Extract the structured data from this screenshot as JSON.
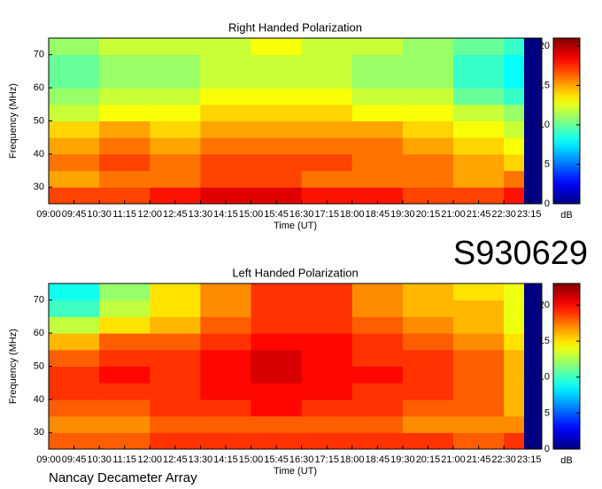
{
  "chart_data": [
    {
      "type": "heatmap",
      "title": "Right Handed Polarization",
      "x_label": "Time (UT)",
      "y_label": "Frequency (MHz)",
      "colorbar_label": "dB",
      "colormap": "jet",
      "xlim": [
        9,
        23.625
      ],
      "xticks": [
        {
          "value": 9,
          "label": "09:00"
        },
        {
          "value": 9.75,
          "label": "09:45"
        },
        {
          "value": 10.5,
          "label": "10:30"
        },
        {
          "value": 11.25,
          "label": "11:15"
        },
        {
          "value": 12,
          "label": "12:00"
        },
        {
          "value": 12.75,
          "label": "12:45"
        },
        {
          "value": 13.5,
          "label": "13:30"
        },
        {
          "value": 14.25,
          "label": "14:15"
        },
        {
          "value": 15,
          "label": "15:00"
        },
        {
          "value": 15.75,
          "label": "15:45"
        },
        {
          "value": 16.5,
          "label": "16:30"
        },
        {
          "value": 17.25,
          "label": "17:15"
        },
        {
          "value": 18,
          "label": "18:00"
        },
        {
          "value": 18.75,
          "label": "18:45"
        },
        {
          "value": 19.5,
          "label": "19:30"
        },
        {
          "value": 20.25,
          "label": "20:15"
        },
        {
          "value": 21,
          "label": "21:00"
        },
        {
          "value": 21.75,
          "label": "21:45"
        },
        {
          "value": 22.5,
          "label": "22:30"
        },
        {
          "value": 23.25,
          "label": "23:15"
        }
      ],
      "ylim": [
        25,
        75
      ],
      "yticks": [
        30,
        40,
        50,
        60,
        70
      ],
      "zlim": [
        0,
        21
      ],
      "zticks": [
        0,
        5,
        10,
        15,
        20
      ],
      "x_bins": [
        9,
        10.5,
        12,
        13.5,
        15,
        16.5,
        18,
        19.5,
        21,
        22.5,
        23.1,
        23.625
      ],
      "y_bins": [
        25,
        30,
        35,
        40,
        45,
        50,
        55,
        60,
        65,
        70,
        75
      ],
      "values": [
        [
          17,
          17,
          18,
          19,
          19,
          18,
          18,
          17,
          17,
          18,
          0
        ],
        [
          15,
          16,
          16,
          17,
          17,
          16,
          16,
          16,
          15,
          16,
          0
        ],
        [
          16,
          17,
          16,
          17,
          17,
          17,
          16,
          16,
          15,
          14,
          0
        ],
        [
          15,
          16,
          15,
          16,
          16,
          16,
          16,
          15,
          14,
          13,
          0
        ],
        [
          14,
          15,
          14,
          15,
          15,
          15,
          15,
          14,
          13,
          12,
          0
        ],
        [
          12,
          13,
          13,
          14,
          14,
          14,
          13,
          13,
          12,
          11,
          0
        ],
        [
          11,
          12,
          12,
          13,
          13,
          13,
          12,
          12,
          10,
          9,
          0
        ],
        [
          10,
          11,
          11,
          12,
          12,
          12,
          11,
          11,
          9,
          8,
          0
        ],
        [
          10,
          11,
          11,
          12,
          12,
          12,
          11,
          11,
          9,
          8,
          0
        ],
        [
          11,
          12,
          12,
          12,
          13,
          12,
          12,
          11,
          10,
          9,
          0
        ]
      ]
    },
    {
      "type": "heatmap",
      "title": "Left Handed Polarization",
      "x_label": "Time (UT)",
      "y_label": "Frequency (MHz)",
      "colorbar_label": "dB",
      "colormap": "jet",
      "xlim": [
        9,
        23.625
      ],
      "xticks": [
        {
          "value": 9,
          "label": "09:00"
        },
        {
          "value": 9.75,
          "label": "09:45"
        },
        {
          "value": 10.5,
          "label": "10:30"
        },
        {
          "value": 11.25,
          "label": "11:15"
        },
        {
          "value": 12,
          "label": "12:00"
        },
        {
          "value": 12.75,
          "label": "12:45"
        },
        {
          "value": 13.5,
          "label": "13:30"
        },
        {
          "value": 14.25,
          "label": "14:15"
        },
        {
          "value": 15,
          "label": "15:00"
        },
        {
          "value": 15.75,
          "label": "15:45"
        },
        {
          "value": 16.5,
          "label": "16:30"
        },
        {
          "value": 17.25,
          "label": "17:15"
        },
        {
          "value": 18,
          "label": "18:00"
        },
        {
          "value": 18.75,
          "label": "18:45"
        },
        {
          "value": 19.5,
          "label": "19:30"
        },
        {
          "value": 20.25,
          "label": "20:15"
        },
        {
          "value": 21,
          "label": "21:00"
        },
        {
          "value": 21.75,
          "label": "21:45"
        },
        {
          "value": 22.5,
          "label": "22:30"
        },
        {
          "value": 23.25,
          "label": "23:15"
        }
      ],
      "ylim": [
        25,
        75
      ],
      "yticks": [
        30,
        40,
        50,
        60,
        70
      ],
      "zlim": [
        0,
        23
      ],
      "zticks": [
        0,
        5,
        10,
        15,
        20
      ],
      "x_bins": [
        9,
        10.5,
        12,
        13.5,
        15,
        16.5,
        18,
        19.5,
        21,
        22.5,
        23.1,
        23.625
      ],
      "y_bins": [
        25,
        30,
        35,
        40,
        45,
        50,
        55,
        60,
        65,
        70,
        75
      ],
      "values": [
        [
          18,
          18,
          19,
          19,
          19,
          19,
          19,
          19,
          18,
          19,
          0
        ],
        [
          17,
          17,
          18,
          18,
          18,
          18,
          18,
          17,
          17,
          17,
          0
        ],
        [
          18,
          18,
          19,
          19,
          20,
          19,
          19,
          18,
          18,
          16,
          0
        ],
        [
          19,
          19,
          19,
          20,
          20,
          20,
          19,
          19,
          18,
          16,
          0
        ],
        [
          19,
          20,
          19,
          20,
          21,
          20,
          20,
          19,
          18,
          16,
          0
        ],
        [
          18,
          19,
          19,
          20,
          21,
          20,
          19,
          19,
          18,
          16,
          0
        ],
        [
          16,
          18,
          18,
          19,
          20,
          20,
          19,
          18,
          17,
          15,
          0
        ],
        [
          13,
          15,
          16,
          18,
          19,
          19,
          18,
          17,
          16,
          14,
          0
        ],
        [
          10,
          13,
          15,
          17,
          19,
          19,
          17,
          16,
          16,
          14,
          0
        ],
        [
          9,
          12,
          15,
          17,
          19,
          19,
          17,
          16,
          15,
          14,
          0
        ]
      ]
    }
  ],
  "labels": {
    "session": "S930629",
    "footer": "Nancay Decameter Array"
  }
}
